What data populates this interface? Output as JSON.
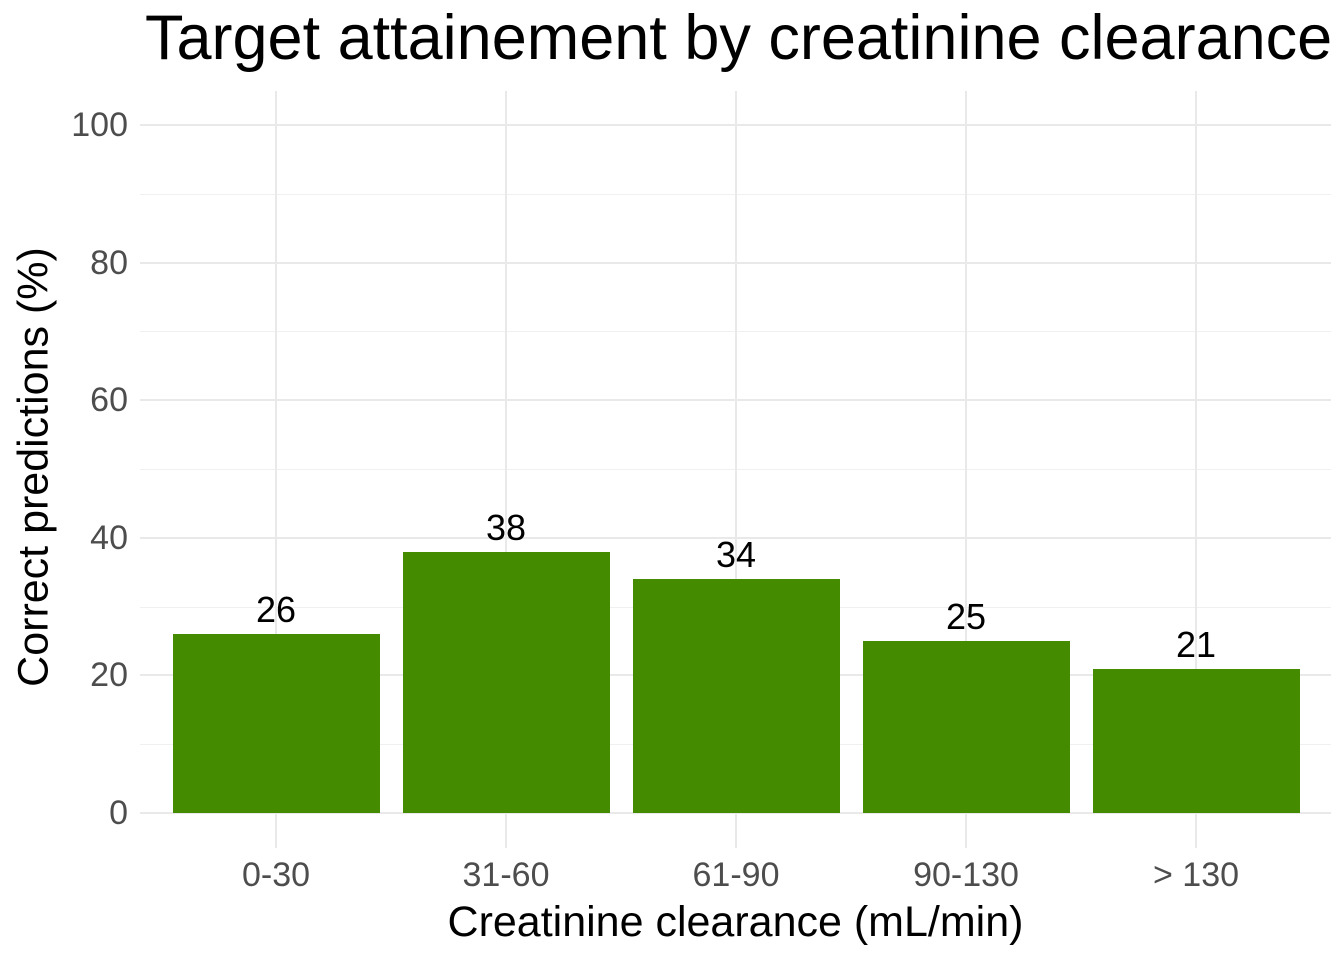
{
  "chart_data": {
    "type": "bar",
    "title": "Target attainement by creatinine clearance",
    "xlabel": "Creatinine clearance (mL/min)",
    "ylabel": "Correct predictions (%)",
    "categories": [
      "0-30",
      "31-60",
      "61-90",
      "90-130",
      "> 130"
    ],
    "values": [
      26,
      38,
      34,
      25,
      21
    ],
    "bar_labels": [
      "26",
      "38",
      "34",
      "25",
      "21"
    ],
    "ylim": [
      0,
      100
    ],
    "yticks": [
      0,
      20,
      40,
      60,
      80,
      100
    ],
    "ytick_labels": [
      "0",
      "20",
      "40",
      "60",
      "80",
      "100"
    ],
    "y_minor_ticks": [
      10,
      30,
      50,
      70,
      90
    ],
    "grid": true,
    "legend": false,
    "colors": {
      "bar_fill": "#458B00",
      "grid_major": "#E9E9E9",
      "grid_minor": "#F0F0F0",
      "tick_label": "#4D4D4D",
      "text": "#000000",
      "background": "#FFFFFF"
    }
  }
}
